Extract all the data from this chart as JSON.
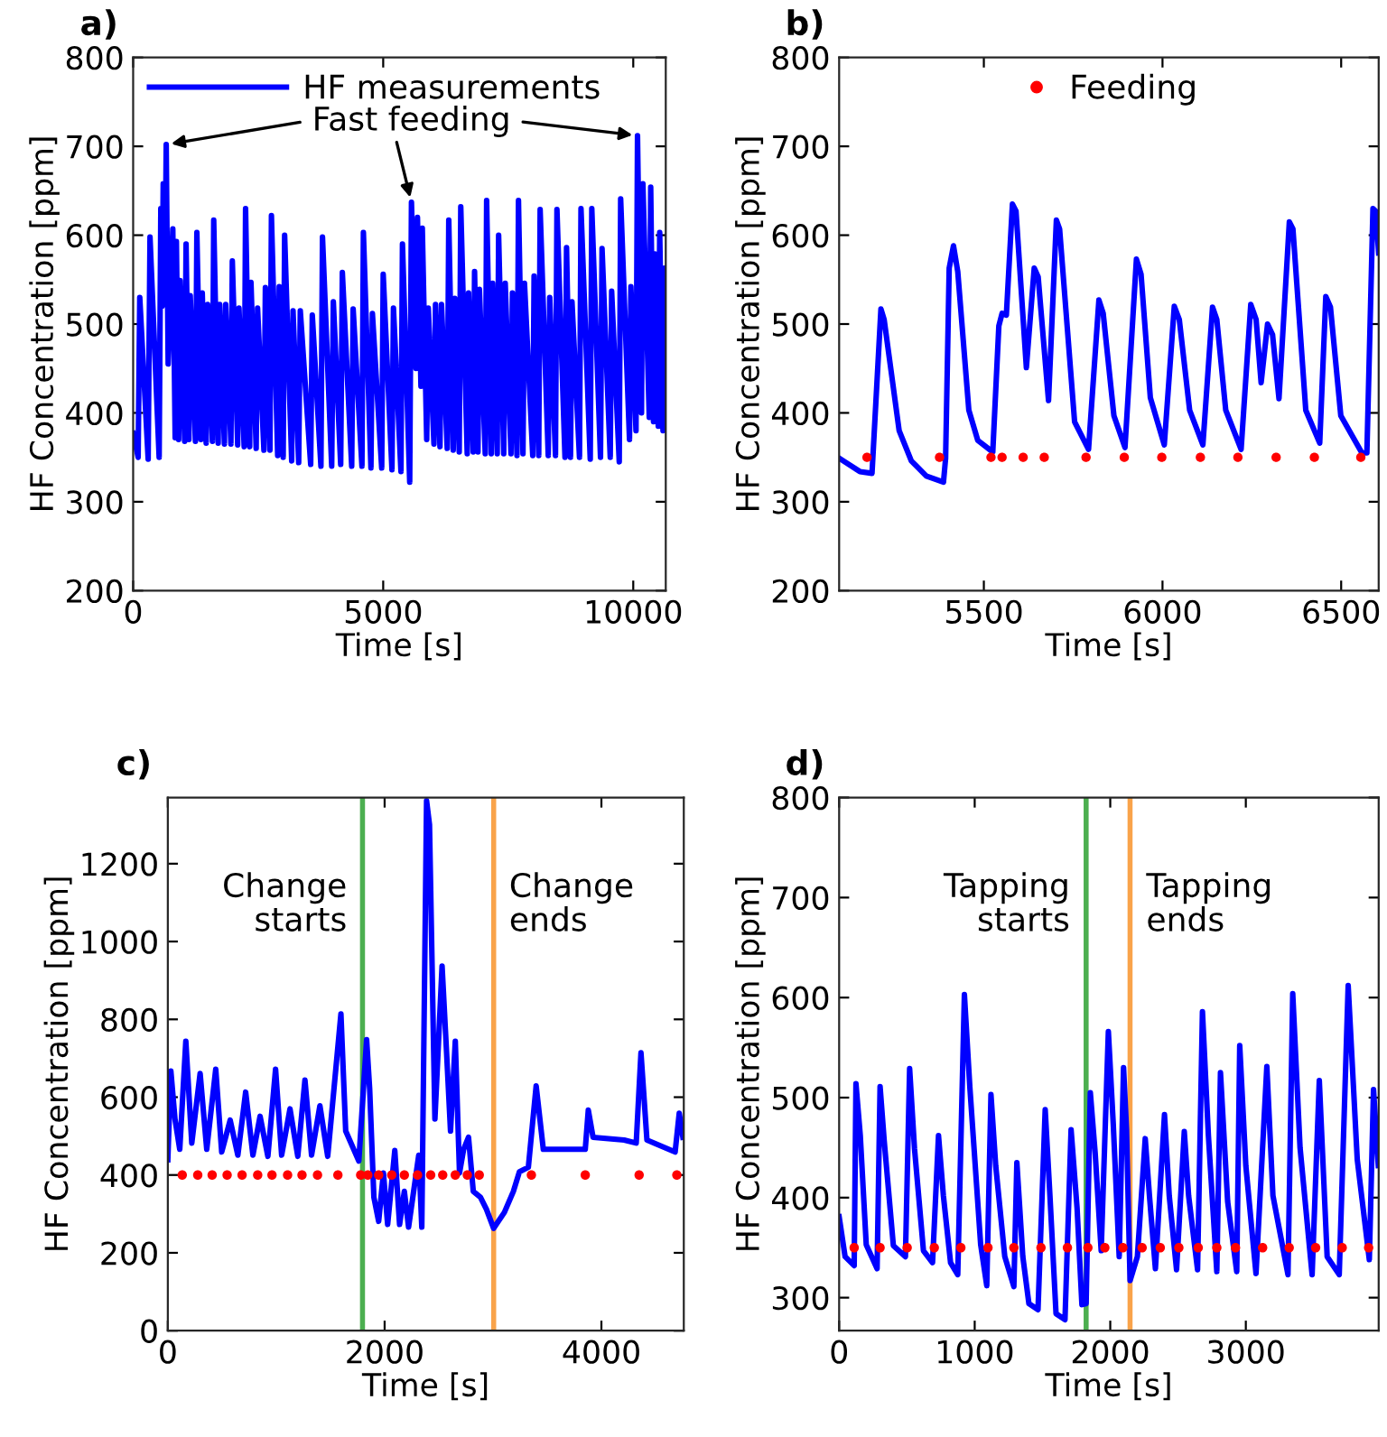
{
  "chart_data": [
    {
      "type": "line",
      "title": "a)",
      "xlabel": "Time [s]",
      "ylabel": "HF Concentration [ppm]",
      "xlim": [
        0,
        10650
      ],
      "xticks": [
        0,
        5000,
        10000
      ],
      "ylim": [
        200,
        800
      ],
      "yticks": [
        200,
        300,
        400,
        500,
        600,
        700,
        800
      ],
      "grid": false,
      "legend": "top left",
      "annotations": [
        {
          "text": "Fast feeding",
          "x": 5565,
          "y": 637
        }
      ],
      "series": [
        {
          "name": "HF measurements",
          "color": "#0000ff",
          "x": [
            0,
            100,
            132,
            300,
            337,
            520,
            553,
            580,
            601,
            640,
            661,
            700,
            793,
            840,
            865,
            910,
            938,
            1030,
            1058,
            1115,
            1142,
            1245,
            1274,
            1355,
            1382,
            1460,
            1490,
            1585,
            1611,
            1700,
            1731,
            1825,
            1851,
            1955,
            1983,
            2090,
            2116,
            2220,
            2248,
            2330,
            2356,
            2460,
            2488,
            2615,
            2644,
            2735,
            2765,
            2890,
            2921,
            3000,
            3029,
            3170,
            3197,
            3310,
            3342,
            3550,
            3582,
            3755,
            3786,
            3970,
            4003,
            4150,
            4183,
            4370,
            4399,
            4575,
            4604,
            4755,
            4784,
            4970,
            5000,
            5175,
            5205,
            5355,
            5385,
            5530,
            5565,
            5655,
            5685,
            5755,
            5782,
            5870,
            5902,
            6015,
            6046,
            6135,
            6166,
            6280,
            6311,
            6400,
            6431,
            6520,
            6551,
            6680,
            6707,
            6800,
            6827,
            6895,
            6924,
            7040,
            7068,
            7160,
            7188,
            7280,
            7308,
            7410,
            7440,
            7555,
            7584,
            7675,
            7705,
            7795,
            7825,
            7990,
            8017,
            8110,
            8138,
            8300,
            8330,
            8445,
            8474,
            8635,
            8666,
            8745,
            8775,
            8925,
            8955,
            9140,
            9171,
            9345,
            9376,
            9540,
            9568,
            9720,
            9748,
            9925,
            9953,
            10055,
            10085,
            10165,
            10193,
            10320,
            10349,
            10405,
            10433,
            10500,
            10529,
            10595,
            10625,
            10650
          ],
          "values": [
            377,
            350,
            530,
            348,
            598,
            350,
            630,
            520,
            658,
            560,
            702,
            455,
            607,
            372,
            593,
            370,
            549,
            368,
            590,
            370,
            532,
            368,
            603,
            370,
            535,
            366,
            522,
            368,
            617,
            366,
            522,
            365,
            522,
            365,
            571,
            364,
            518,
            362,
            630,
            362,
            547,
            360,
            518,
            358,
            541,
            358,
            622,
            352,
            542,
            350,
            600,
            346,
            515,
            344,
            515,
            342,
            510,
            340,
            598,
            340,
            525,
            342,
            558,
            340,
            517,
            340,
            603,
            338,
            512,
            338,
            556,
            336,
            518,
            334,
            590,
            322,
            637,
            450,
            620,
            430,
            608,
            370,
            518,
            365,
            522,
            362,
            522,
            360,
            617,
            358,
            529,
            356,
            632,
            354,
            535,
            356,
            559,
            356,
            539,
            354,
            639,
            354,
            546,
            354,
            600,
            354,
            546,
            354,
            535,
            352,
            639,
            354,
            546,
            352,
            554,
            352,
            629,
            352,
            530,
            352,
            629,
            350,
            586,
            350,
            525,
            350,
            630,
            348,
            630,
            350,
            585,
            350,
            537,
            345,
            641,
            370,
            542,
            380,
            712,
            400,
            658,
            395,
            654,
            390,
            579,
            385,
            603,
            380,
            563,
            450
          ]
        }
      ]
    },
    {
      "type": "line",
      "title": "b)",
      "xlabel": "Time [s]",
      "ylabel": "HF Concentration [ppm]",
      "xlim": [
        5095,
        6605
      ],
      "xticks": [
        5500,
        6000,
        6500
      ],
      "ylim": [
        200,
        800
      ],
      "yticks": [
        200,
        300,
        400,
        500,
        600,
        700,
        800
      ],
      "grid": false,
      "legend": "top",
      "series": [
        {
          "color": "#0000ff",
          "x": [
            5095,
            5153,
            5187,
            5212,
            5221,
            5263,
            5297,
            5339,
            5387,
            5393,
            5403,
            5415,
            5427,
            5458,
            5483,
            5525,
            5542,
            5551,
            5563,
            5580,
            5590,
            5619,
            5641,
            5652,
            5681,
            5703,
            5712,
            5754,
            5793,
            5822,
            5834,
            5864,
            5895,
            5927,
            5940,
            5966,
            6005,
            6033,
            6047,
            6076,
            6113,
            6140,
            6152,
            6177,
            6220,
            6247,
            6262,
            6276,
            6294,
            6308,
            6326,
            6355,
            6365,
            6401,
            6440,
            6457,
            6470,
            6499,
            6558,
            6572,
            6589,
            6597,
            6605
          ],
          "values": [
            349,
            334,
            332,
            517,
            505,
            380,
            346,
            329,
            322,
            349,
            563,
            588,
            559,
            403,
            369,
            356,
            498,
            512,
            510,
            635,
            627,
            451,
            563,
            553,
            414,
            617,
            607,
            390,
            359,
            527,
            512,
            397,
            361,
            573,
            556,
            417,
            364,
            520,
            505,
            403,
            364,
            519,
            505,
            403,
            359,
            522,
            505,
            434,
            500,
            488,
            416,
            615,
            607,
            403,
            366,
            531,
            519,
            397,
            355,
            355,
            630,
            627,
            580
          ]
        },
        {
          "name": "Feeding",
          "type": "scatter",
          "marker": "circle",
          "color": "#ff0000",
          "x": [
            5173,
            5376,
            5520,
            5551,
            5610,
            5669,
            5786,
            5893,
            5998,
            6106,
            6211,
            6318,
            6425,
            6555
          ],
          "values": [
            350,
            350,
            350,
            350,
            350,
            350,
            350,
            350,
            350,
            350,
            350,
            350,
            350,
            350
          ]
        }
      ]
    },
    {
      "type": "line",
      "title": "c)",
      "xlabel": "Time [s]",
      "ylabel": "HF Concentration [ppm]",
      "xlim": [
        0,
        4760
      ],
      "xticks": [
        0,
        2000,
        4000
      ],
      "ylim": [
        0,
        1370
      ],
      "yticks": [
        0,
        200,
        400,
        600,
        800,
        1000,
        1200
      ],
      "grid": false,
      "ref_lines": [
        {
          "axis": "x",
          "value": 1796,
          "label": "Change\nstarts",
          "color": "#4caf50"
        },
        {
          "axis": "x",
          "value": 3006,
          "label": "Change\nends",
          "color": "#f9a34a"
        }
      ],
      "series": [
        {
          "color": "#0000ff",
          "x": [
            0,
            28,
            66,
            110,
            166,
            221,
            298,
            359,
            442,
            497,
            575,
            646,
            718,
            785,
            851,
            923,
            994,
            1050,
            1127,
            1199,
            1265,
            1326,
            1403,
            1475,
            1597,
            1641,
            1762,
            1834,
            1862,
            1901,
            1945,
            1989,
            2028,
            2094,
            2138,
            2182,
            2221,
            2315,
            2343,
            2387,
            2414,
            2464,
            2530,
            2569,
            2608,
            2652,
            2691,
            2729,
            2774,
            2818,
            2884,
            2939,
            3006,
            3105,
            3188,
            3243,
            3326,
            3398,
            3464,
            3658,
            3851,
            3879,
            3923,
            4210,
            4321,
            4365,
            4420,
            4680,
            4718,
            4752
          ],
          "values": [
            439,
            667,
            544,
            466,
            744,
            482,
            661,
            466,
            672,
            459,
            541,
            451,
            613,
            451,
            551,
            448,
            672,
            451,
            570,
            448,
            644,
            451,
            578,
            448,
            814,
            513,
            436,
            748,
            621,
            343,
            281,
            405,
            273,
            463,
            273,
            358,
            266,
            451,
            266,
            1362,
            1300,
            544,
            937,
            729,
            513,
            744,
            405,
            466,
            497,
            358,
            343,
            312,
            263,
            304,
            358,
            408,
            420,
            629,
            466,
            466,
            466,
            567,
            497,
            490,
            482,
            714,
            490,
            459,
            559,
            497
          ]
        },
        {
          "type": "scatter",
          "marker": "circle",
          "color": "#ff0000",
          "x": [
            133,
            276,
            409,
            547,
            685,
            829,
            961,
            1105,
            1238,
            1381,
            1569,
            1779,
            1845,
            1945,
            2066,
            2182,
            2304,
            2425,
            2536,
            2652,
            2763,
            2873,
            3354,
            3851,
            4348,
            4696
          ],
          "values": [
            400,
            400,
            400,
            400,
            400,
            400,
            400,
            400,
            400,
            400,
            400,
            400,
            400,
            400,
            400,
            400,
            400,
            400,
            400,
            400,
            400,
            400,
            400,
            400,
            400,
            400
          ]
        }
      ]
    },
    {
      "type": "line",
      "title": "d)",
      "xlabel": "Time [s]",
      "ylabel": "HF Concentration [ppm]",
      "xlim": [
        0,
        3980
      ],
      "xticks": [
        0,
        1000,
        2000,
        3000
      ],
      "ylim": [
        267,
        800
      ],
      "yticks": [
        300,
        400,
        500,
        600,
        700,
        800
      ],
      "grid": false,
      "ref_lines": [
        {
          "axis": "x",
          "value": 1822,
          "label": "Tapping\nstarts",
          "color": "#4caf50"
        },
        {
          "axis": "x",
          "value": 2146,
          "label": "Tapping\nends",
          "color": "#f9a34a"
        }
      ],
      "series": [
        {
          "color": "#0000ff",
          "x": [
            0,
            44,
            111,
            124,
            156,
            200,
            280,
            302,
            333,
            400,
            489,
            520,
            556,
            622,
            689,
            733,
            769,
            822,
            875,
            924,
            964,
            1044,
            1089,
            1120,
            1155,
            1222,
            1289,
            1311,
            1355,
            1400,
            1467,
            1520,
            1555,
            1600,
            1666,
            1711,
            1755,
            1791,
            1822,
            1853,
            1889,
            1933,
            1986,
            2022,
            2066,
            2098,
            2120,
            2146,
            2200,
            2258,
            2289,
            2333,
            2400,
            2435,
            2489,
            2546,
            2578,
            2644,
            2680,
            2724,
            2786,
            2813,
            2866,
            2933,
            2955,
            3000,
            3075,
            3155,
            3200,
            3311,
            3346,
            3400,
            3489,
            3542,
            3600,
            3689,
            3755,
            3822,
            3911,
            3942,
            3977
          ],
          "values": [
            381,
            341,
            332,
            514,
            462,
            353,
            329,
            511,
            456,
            352,
            341,
            529,
            449,
            347,
            335,
            462,
            402,
            335,
            323,
            603,
            511,
            353,
            312,
            503,
            432,
            341,
            311,
            435,
            341,
            294,
            288,
            488,
            402,
            284,
            278,
            468,
            390,
            293,
            294,
            505,
            444,
            347,
            566,
            474,
            341,
            530,
            468,
            317,
            341,
            459,
            402,
            329,
            483,
            402,
            328,
            466,
            402,
            328,
            586,
            462,
            326,
            525,
            396,
            326,
            552,
            432,
            324,
            531,
            402,
            323,
            604,
            450,
            323,
            517,
            341,
            323,
            612,
            438,
            338,
            508,
            432
          ]
        },
        {
          "type": "scatter",
          "marker": "circle",
          "color": "#ff0000",
          "x": [
            111,
            302,
            502,
            702,
            898,
            1098,
            1289,
            1489,
            1684,
            1835,
            1960,
            2093,
            2235,
            2369,
            2506,
            2649,
            2786,
            2924,
            3124,
            3320,
            3515,
            3711,
            3906
          ],
          "values": [
            350,
            350,
            350,
            350,
            350,
            350,
            350,
            350,
            350,
            350,
            350,
            350,
            350,
            350,
            350,
            350,
            350,
            350,
            350,
            350,
            350,
            350,
            350
          ]
        }
      ]
    }
  ]
}
